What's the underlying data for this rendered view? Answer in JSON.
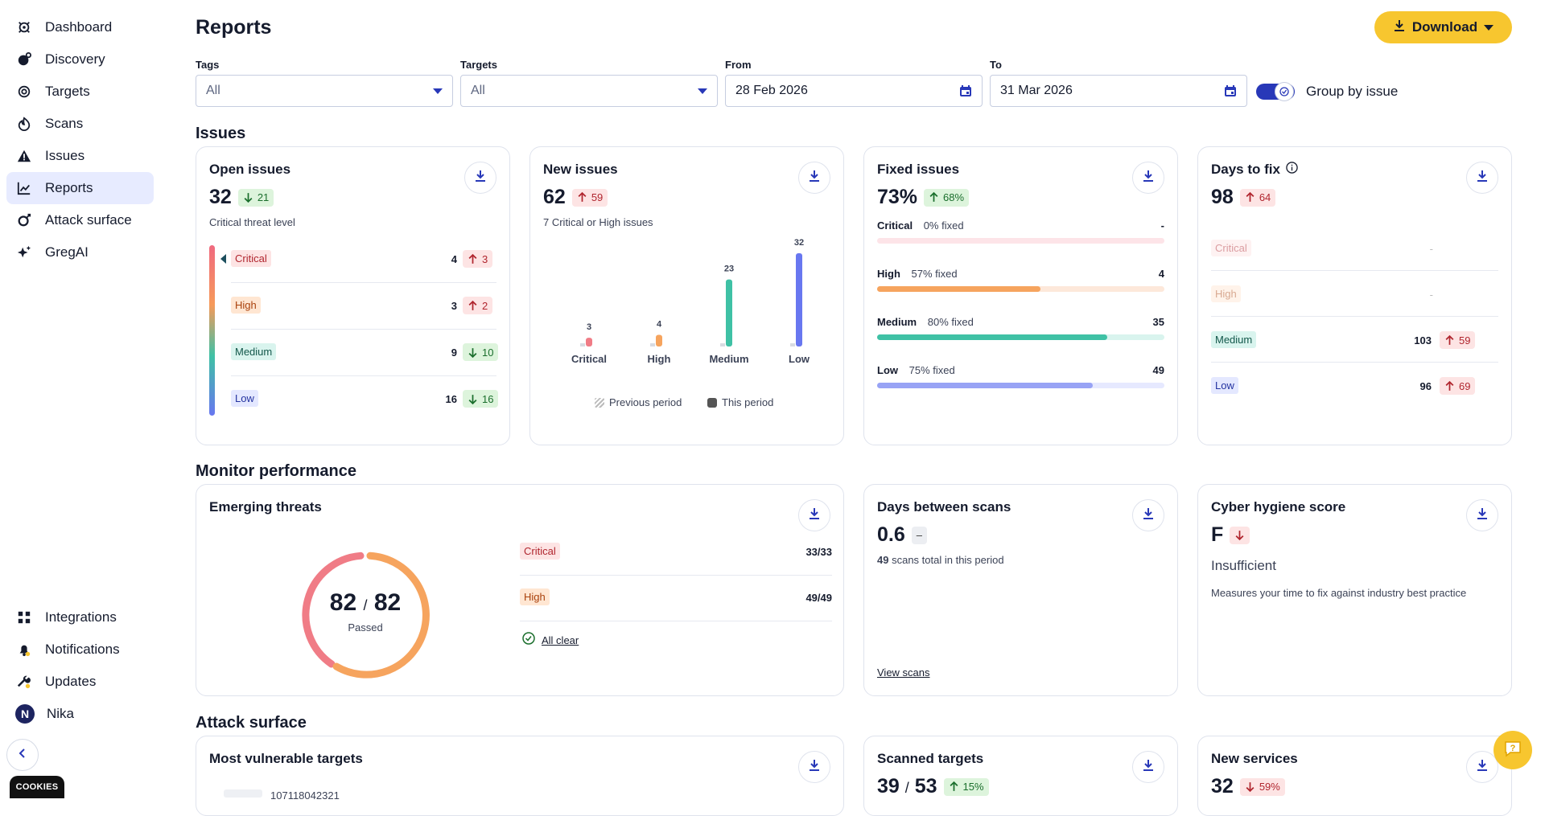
{
  "sidebar": {
    "items": [
      {
        "label": "Dashboard",
        "icon": "dashboard-icon"
      },
      {
        "label": "Discovery",
        "icon": "discovery-icon"
      },
      {
        "label": "Targets",
        "icon": "targets-icon"
      },
      {
        "label": "Scans",
        "icon": "scans-icon"
      },
      {
        "label": "Issues",
        "icon": "issues-icon"
      },
      {
        "label": "Reports",
        "icon": "reports-icon",
        "active": true
      },
      {
        "label": "Attack surface",
        "icon": "attack-surface-icon"
      },
      {
        "label": "GregAI",
        "icon": "sparkle-icon"
      }
    ],
    "bottom_items": [
      {
        "label": "Integrations",
        "icon": "integrations-icon"
      },
      {
        "label": "Notifications",
        "icon": "bell-icon"
      },
      {
        "label": "Updates",
        "icon": "wrench-icon"
      },
      {
        "label": "Nika",
        "icon": "avatar",
        "avatar_letter": "N"
      }
    ],
    "cookies_label": "COOKIES"
  },
  "header": {
    "title": "Reports",
    "download_label": "Download"
  },
  "filters": {
    "tags": {
      "label": "Tags",
      "value": "All"
    },
    "targets": {
      "label": "Targets",
      "value": "All"
    },
    "from": {
      "label": "From",
      "value": "28 Feb 2026"
    },
    "to": {
      "label": "To",
      "value": "31 Mar 2026"
    },
    "group_by_issue": {
      "label": "Group by issue",
      "checked": true
    }
  },
  "sections": {
    "issues": "Issues",
    "monitor": "Monitor performance",
    "attack": "Attack surface"
  },
  "open_issues": {
    "title": "Open issues",
    "value": "32",
    "delta": "21",
    "delta_dir": "down",
    "subtitle": "Critical threat level",
    "rows": [
      {
        "label": "Critical",
        "sev": "critical",
        "count": "4",
        "delta": "3",
        "dir": "up"
      },
      {
        "label": "High",
        "sev": "high",
        "count": "3",
        "delta": "2",
        "dir": "up"
      },
      {
        "label": "Medium",
        "sev": "medium",
        "count": "9",
        "delta": "10",
        "dir": "down"
      },
      {
        "label": "Low",
        "sev": "low",
        "count": "16",
        "delta": "16",
        "dir": "down"
      }
    ]
  },
  "new_issues": {
    "title": "New issues",
    "value": "62",
    "delta": "59",
    "delta_dir": "up",
    "subtitle": "7 Critical or High issues",
    "legend_previous": "Previous period",
    "legend_this": "This period",
    "chart": {
      "categories": [
        "Critical",
        "High",
        "Medium",
        "Low"
      ],
      "this_period": [
        3,
        4,
        23,
        32
      ],
      "colors": [
        "#f07c86",
        "#f6a45e",
        "#3fc1a5",
        "#6877f0"
      ]
    }
  },
  "fixed_issues": {
    "title": "Fixed issues",
    "value": "73%",
    "delta": "68%",
    "delta_dir": "up",
    "rows": [
      {
        "label": "Critical",
        "fixed_text": "0% fixed",
        "count": "-",
        "fixed": 0,
        "track": "#fde4e8",
        "fill": "#f07c86"
      },
      {
        "label": "High",
        "fixed_text": "57% fixed",
        "count": "4",
        "fixed": 0.57,
        "track": "#fde8da",
        "fill": "#f6a45e"
      },
      {
        "label": "Medium",
        "fixed_text": "80% fixed",
        "count": "35",
        "fixed": 0.8,
        "track": "#d9f4ee",
        "fill": "#3fc1a5"
      },
      {
        "label": "Low",
        "fixed_text": "75% fixed",
        "count": "49",
        "fixed": 0.75,
        "track": "#e6e9ff",
        "fill": "#98a3f5"
      }
    ]
  },
  "days_to_fix": {
    "title": "Days to fix",
    "value": "98",
    "delta": "64",
    "delta_dir": "up",
    "rows": [
      {
        "label": "Critical",
        "sev": "critical",
        "count": "-",
        "faded": true
      },
      {
        "label": "High",
        "sev": "high",
        "count": "-",
        "faded": true
      },
      {
        "label": "Medium",
        "sev": "medium",
        "count": "103",
        "delta": "59",
        "dir": "up"
      },
      {
        "label": "Low",
        "sev": "low",
        "count": "96",
        "delta": "69",
        "dir": "up"
      }
    ]
  },
  "emerging_threats": {
    "title": "Emerging threats",
    "passed": "82",
    "total": "82",
    "slash": "/",
    "passed_label": "Passed",
    "rows": [
      {
        "label": "Critical",
        "sev": "critical",
        "value": "33/33"
      },
      {
        "label": "High",
        "sev": "high",
        "value": "49/49"
      }
    ],
    "all_clear": "All clear"
  },
  "days_between_scans": {
    "title": "Days between scans",
    "value": "0.6",
    "delta": "–",
    "scans_count": "49",
    "scans_text": "scans total in this period",
    "link": "View scans"
  },
  "cyber_hygiene": {
    "title": "Cyber hygiene score",
    "grade": "F",
    "status": "Insufficient",
    "description": "Measures your time to fix against industry best practice"
  },
  "most_vulnerable": {
    "title": "Most vulnerable targets",
    "partial_row_text": "107118042321"
  },
  "scanned_targets": {
    "title": "Scanned targets",
    "value": "39",
    "total": "53",
    "slash": "/",
    "delta": "15%",
    "delta_dir": "up_good"
  },
  "new_services": {
    "title": "New services",
    "value": "32",
    "delta": "59%",
    "delta_dir": "down_bad"
  }
}
